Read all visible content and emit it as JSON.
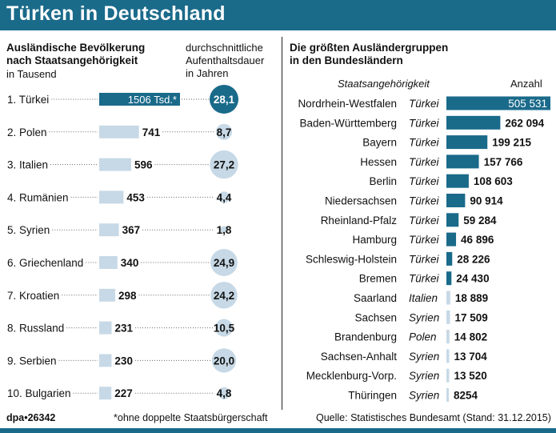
{
  "title": "Türken in Deutschland",
  "left_panel": {
    "heading_line1": "Ausländische Bevölkerung",
    "heading_line2": "nach Staatsangehörigkeit",
    "unit": "in Tausend",
    "duration_line1": "durchschnittliche",
    "duration_line2": "Aufenthaltsdauer",
    "duration_line3": "in Jahren"
  },
  "right_panel": {
    "heading_line1": "Die größten Ausländergruppen",
    "heading_line2": "in den Bundesländern",
    "col_nationality": "Staatsangehörigkeit",
    "col_count": "Anzahl"
  },
  "footer": {
    "agency": "dpa•26342",
    "note": "*ohne doppelte Staatsbürgerschaft",
    "source": "Quelle: Statistisches Bundesamt (Stand: 31.12.2015)"
  },
  "colors": {
    "brand": "#1a6a8a",
    "light_bar": "#c7d9e6",
    "dark_bar": "#1a6a8a"
  },
  "chart_data": [
    {
      "type": "bar",
      "title": "Ausländische Bevölkerung nach Staatsangehörigkeit",
      "ylabel": "in Tausend",
      "categories": [
        "1. Türkei",
        "2. Polen",
        "3. Italien",
        "4. Rumänien",
        "5. Syrien",
        "6. Griechenland",
        "7. Kroatien",
        "8. Russland",
        "9. Serbien",
        "10. Bulgarien"
      ],
      "values": [
        1506,
        741,
        596,
        453,
        367,
        340,
        298,
        231,
        230,
        227
      ],
      "value_labels": [
        "1506 Tsd.*",
        "741",
        "596",
        "453",
        "367",
        "340",
        "298",
        "231",
        "230",
        "227"
      ],
      "duration_label": "durchschnittliche Aufenthaltsdauer in Jahren",
      "durations": [
        28.1,
        8.7,
        27.2,
        4.4,
        1.8,
        24.9,
        24.2,
        10.5,
        20.0,
        4.8
      ],
      "duration_labels": [
        "28,1",
        "8,7",
        "27,2",
        "4,4",
        "1,8",
        "24,9",
        "24,2",
        "10,5",
        "20,0",
        "4,8"
      ]
    },
    {
      "type": "bar",
      "title": "Die größten Ausländergruppen in den Bundesländern",
      "xlabel": "Staatsangehörigkeit",
      "ylabel": "Anzahl",
      "categories": [
        "Nordrhein-Westfalen",
        "Baden-Württemberg",
        "Bayern",
        "Hessen",
        "Berlin",
        "Niedersachsen",
        "Rheinland-Pfalz",
        "Hamburg",
        "Schleswig-Holstein",
        "Bremen",
        "Saarland",
        "Sachsen",
        "Brandenburg",
        "Sachsen-Anhalt",
        "Mecklenburg-Vorp.",
        "Thüringen"
      ],
      "nationalities": [
        "Türkei",
        "Türkei",
        "Türkei",
        "Türkei",
        "Türkei",
        "Türkei",
        "Türkei",
        "Türkei",
        "Türkei",
        "Türkei",
        "Italien",
        "Syrien",
        "Polen",
        "Syrien",
        "Syrien",
        "Syrien"
      ],
      "values": [
        505531,
        262094,
        199215,
        157766,
        108603,
        90914,
        59284,
        46896,
        28226,
        24430,
        18889,
        17509,
        14802,
        13704,
        13520,
        8254
      ],
      "value_labels": [
        "505 531",
        "262 094",
        "199 215",
        "157 766",
        "108 603",
        "90 914",
        "59 284",
        "46 896",
        "28 226",
        "24 430",
        "18 889",
        "17 509",
        "14 802",
        "13 704",
        "13 520",
        "8254"
      ]
    }
  ]
}
